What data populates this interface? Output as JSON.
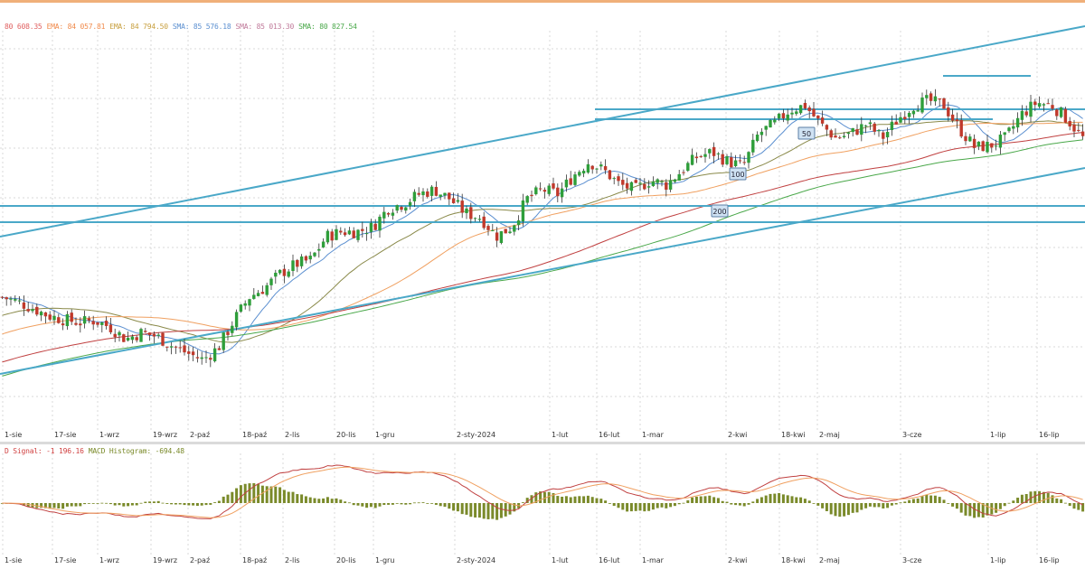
{
  "legend": {
    "main": [
      {
        "label": "",
        "value": "80 608.35",
        "color": "#e06060"
      },
      {
        "label": "EMA:",
        "value": "84 057.81",
        "color": "#f08a4b"
      },
      {
        "label": "EMA:",
        "value": "84 794.50",
        "color": "#c8a040"
      },
      {
        "label": "SMA:",
        "value": "85 576.18",
        "color": "#5b8fd0"
      },
      {
        "label": "SMA:",
        "value": "85 013.30",
        "color": "#c07a9a"
      },
      {
        "label": "SMA:",
        "value": "80 827.54",
        "color": "#4aa84a"
      }
    ],
    "macd": [
      {
        "label": "D Signal:",
        "value": "-1 196.16",
        "color": "#d04040"
      },
      {
        "label": "MACD Histogram:",
        "value": "-694.48",
        "color": "#7a8a2a"
      }
    ]
  },
  "colors": {
    "bull": "#2e9e3a",
    "bear": "#c0392b",
    "channel": "#4aa8c8",
    "grid": "#d8d8d8",
    "ma_fast": "#5b8fd0",
    "ma_mid": "#8a8a4a",
    "ma_slow": "#f0a060",
    "ma_200": "#c04040",
    "ma_green": "#4aa84a",
    "macd_line": "#c04040",
    "macd_signal": "#f0a060",
    "macd_hist": "#7a8a2a"
  },
  "chart_data": {
    "type": "candlestick",
    "x_ticks": [
      "1-sie",
      "17-sie",
      "1-wrz",
      "19-wrz",
      "2-paź",
      "18-paź",
      "2-lis",
      "20-lis",
      "1-gru",
      "2-sty-2024",
      "1-lut",
      "16-lut",
      "1-mar",
      "2-kwi",
      "18-kwi",
      "2-maj",
      "3-cze",
      "1-lip",
      "16-lip"
    ],
    "ma_markers": [
      "50",
      "100",
      "200"
    ],
    "price_path": [
      78,
      77.5,
      76.8,
      76,
      75.6,
      75.3,
      75.5,
      74.8,
      73.5,
      74.2,
      73.8,
      72.8,
      72,
      71.3,
      72.6,
      75.5,
      78,
      79,
      80.5,
      81.5,
      82,
      84.5,
      85,
      85,
      85.5,
      87.5,
      88,
      89,
      89.5,
      88.5,
      87,
      86.5,
      84.5,
      85.5,
      88.5,
      89.5,
      89,
      91,
      92.5,
      91.5,
      90,
      89.5,
      90.5,
      90,
      91.5,
      93,
      93.5,
      92.5,
      92,
      95.5,
      96.5,
      98,
      98.5,
      96.5,
      95,
      95.5,
      96.5,
      95,
      97,
      98.5,
      99,
      98.5,
      96,
      94,
      94.2,
      95,
      97.5,
      98.8,
      98.5,
      97,
      95
    ]
  }
}
